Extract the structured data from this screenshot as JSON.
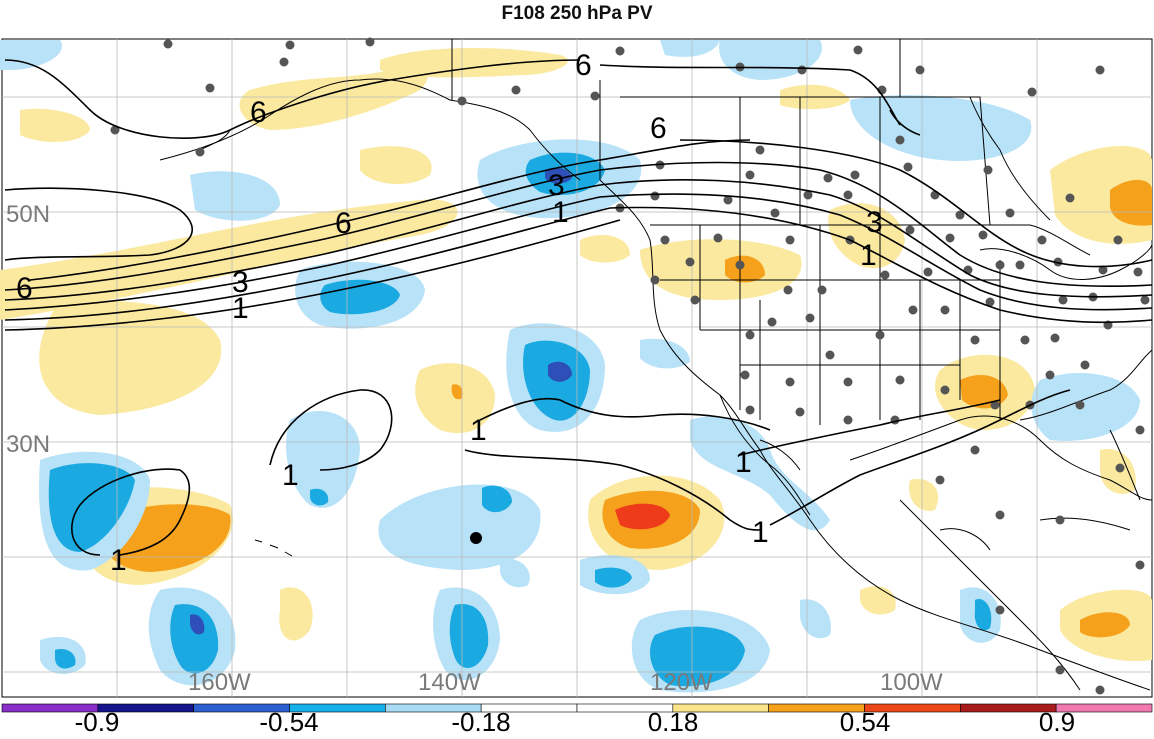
{
  "title": "F108 250 hPa PV",
  "map": {
    "lat_labels": [
      "50N",
      "30N"
    ],
    "lon_labels": [
      "160W",
      "140W",
      "120W",
      "100W"
    ],
    "contour_labels": [
      "6",
      "6",
      "6",
      "6",
      "6",
      "3",
      "3",
      "3",
      "1",
      "1",
      "1",
      "1",
      "1",
      "1",
      "1",
      "1"
    ],
    "colors": {
      "neg_strong": "#1e3fa8",
      "neg_mid": "#1aa9e0",
      "neg_weak": "#b8e2f8",
      "pos_weak": "#fbe9a0",
      "pos_mid": "#f5a11c",
      "pos_strong": "#ee3b1a"
    }
  },
  "colorbar": {
    "labels": [
      "-0.9",
      "-0.54",
      "-0.18",
      "0.18",
      "0.54",
      "0.9"
    ],
    "colors": [
      "#8a2fc8",
      "#16148a",
      "#2e5fd0",
      "#16b0ea",
      "#a8dcf6",
      "#ffffff",
      "#ffffff",
      "#fbe58a",
      "#f5a11c",
      "#ec4716",
      "#a81c1c",
      "#f07ab0"
    ]
  }
}
